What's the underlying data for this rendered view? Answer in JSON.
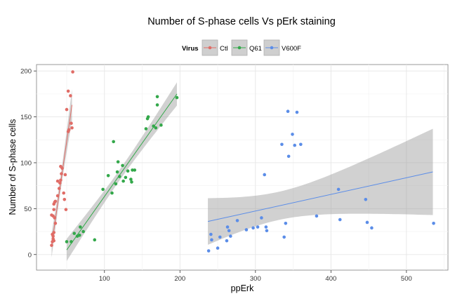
{
  "chart_data": {
    "type": "scatter",
    "title": "Number of S-phase cells Vs pErk staining",
    "xlabel": "ppErk",
    "ylabel": "Number of S-phase cells",
    "xlim": [
      10,
      555
    ],
    "ylim": [
      -17,
      207
    ],
    "x_ticks": [
      100,
      200,
      300,
      400,
      500
    ],
    "y_ticks": [
      0,
      50,
      100,
      150,
      200
    ],
    "grid": true,
    "legend": {
      "title": "Virus",
      "position": "top"
    },
    "series": [
      {
        "name": "Ctl",
        "color": "#e06c66",
        "points": [
          [
            30,
            10
          ],
          [
            31,
            14
          ],
          [
            32,
            17
          ],
          [
            32,
            20
          ],
          [
            33,
            15
          ],
          [
            31,
            22
          ],
          [
            33,
            24
          ],
          [
            30,
            43
          ],
          [
            32,
            42
          ],
          [
            34,
            40
          ],
          [
            33,
            55
          ],
          [
            34,
            57
          ],
          [
            35,
            58
          ],
          [
            33,
            49
          ],
          [
            35,
            34
          ],
          [
            38,
            64
          ],
          [
            38,
            80
          ],
          [
            40,
            72
          ],
          [
            41,
            78
          ],
          [
            42,
            81
          ],
          [
            42,
            96
          ],
          [
            44,
            94
          ],
          [
            43,
            88
          ],
          [
            48,
            87
          ],
          [
            46,
            67
          ],
          [
            47,
            60
          ],
          [
            49,
            49
          ],
          [
            50,
            158
          ],
          [
            52,
            134
          ],
          [
            53,
            136
          ],
          [
            52,
            178
          ],
          [
            55,
            173
          ],
          [
            56,
            143
          ],
          [
            57,
            138
          ],
          [
            58,
            199
          ]
        ],
        "fit": {
          "x": [
            30,
            57
          ],
          "y": [
            10,
            163
          ]
        }
      },
      {
        "name": "Q61",
        "color": "#33a84a",
        "points": [
          [
            50,
            14
          ],
          [
            56,
            14
          ],
          [
            60,
            23
          ],
          [
            64,
            20
          ],
          [
            67,
            21
          ],
          [
            68,
            30
          ],
          [
            72,
            25
          ],
          [
            87,
            16
          ],
          [
            98,
            71
          ],
          [
            105,
            86
          ],
          [
            110,
            67
          ],
          [
            112,
            123
          ],
          [
            115,
            77
          ],
          [
            117,
            90
          ],
          [
            118,
            101
          ],
          [
            120,
            85
          ],
          [
            124,
            97
          ],
          [
            125,
            80
          ],
          [
            128,
            84
          ],
          [
            131,
            91
          ],
          [
            135,
            82
          ],
          [
            136,
            79
          ],
          [
            137,
            92
          ],
          [
            140,
            92
          ],
          [
            155,
            137
          ],
          [
            157,
            148
          ],
          [
            158,
            150
          ],
          [
            165,
            140
          ],
          [
            168,
            138
          ],
          [
            170,
            172
          ],
          [
            170,
            163
          ],
          [
            175,
            141
          ],
          [
            196,
            171
          ]
        ],
        "fit": {
          "x": [
            50,
            196
          ],
          "y": [
            5,
            175
          ]
        }
      },
      {
        "name": "V600F",
        "color": "#5b8de8",
        "points": [
          [
            238,
            4
          ],
          [
            241,
            22
          ],
          [
            242,
            16
          ],
          [
            250,
            7
          ],
          [
            253,
            19
          ],
          [
            262,
            15
          ],
          [
            263,
            30
          ],
          [
            265,
            26
          ],
          [
            267,
            20
          ],
          [
            276,
            37
          ],
          [
            288,
            27
          ],
          [
            297,
            29
          ],
          [
            303,
            30
          ],
          [
            308,
            40
          ],
          [
            312,
            87
          ],
          [
            314,
            30
          ],
          [
            315,
            26
          ],
          [
            335,
            120
          ],
          [
            338,
            19
          ],
          [
            340,
            34
          ],
          [
            343,
            156
          ],
          [
            344,
            107
          ],
          [
            349,
            131
          ],
          [
            352,
            119
          ],
          [
            355,
            155
          ],
          [
            360,
            120
          ],
          [
            381,
            42
          ],
          [
            410,
            71
          ],
          [
            412,
            38
          ],
          [
            446,
            60
          ],
          [
            448,
            35
          ],
          [
            454,
            29
          ],
          [
            536,
            34
          ]
        ],
        "fit": {
          "x": [
            237,
            535
          ],
          "y": [
            36,
            90
          ]
        }
      }
    ]
  }
}
